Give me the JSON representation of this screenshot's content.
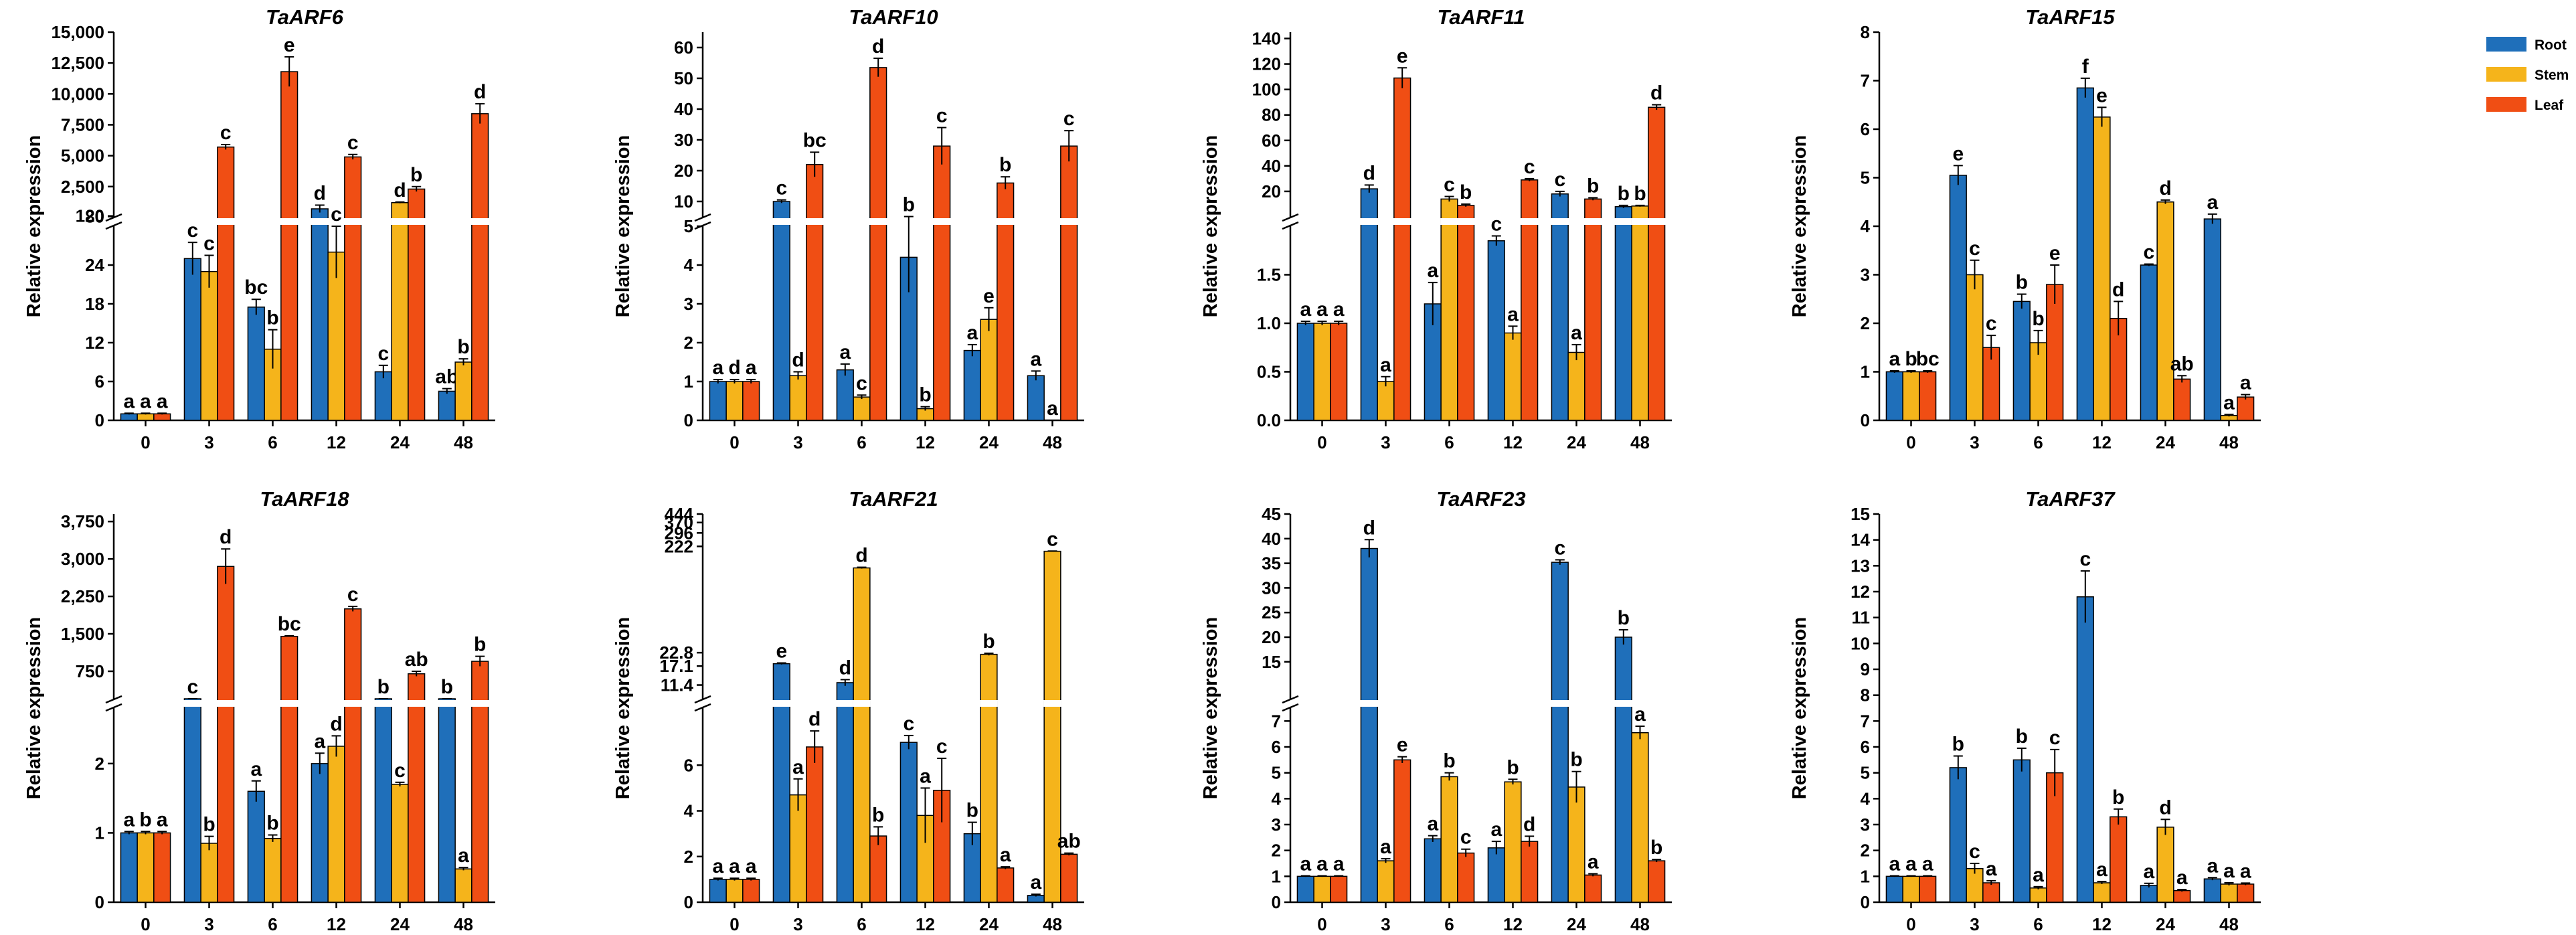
{
  "colors": {
    "Root": "#1f6fba",
    "Stem": "#f5b41b",
    "Leaf": "#f04e14"
  },
  "chart_data": {
    "type": "bar",
    "legend": [
      "Root",
      "Stem",
      "Leaf"
    ],
    "legend_position": "top-right",
    "x_categories": [
      "0",
      "3",
      "6",
      "12",
      "24",
      "48"
    ],
    "ylabel": "Relative expression",
    "panels": [
      {
        "title": "TaARF6",
        "lower": {
          "range": [
            0,
            30
          ],
          "ticks": [
            "0",
            "6",
            "12",
            "18",
            "24"
          ],
          "tickvals": [
            0,
            6,
            12,
            18,
            24
          ]
        },
        "upper": {
          "range": [
            50,
            15000
          ],
          "ticks": [
            "80",
            "120",
            "2,500",
            "5,000",
            "7,500",
            "10,000",
            "12,500",
            "15,000"
          ],
          "tickvals": [
            80,
            120,
            2500,
            5000,
            7500,
            10000,
            12500,
            15000
          ]
        },
        "series": [
          {
            "name": "Root",
            "values": [
              1,
              25,
              17.5,
              700,
              7.5,
              4.5
            ],
            "errors": [
              0.1,
              2.5,
              1.2,
              300,
              1,
              0.4
            ],
            "letters": [
              "a",
              "c",
              "bc",
              "d",
              "c",
              "ab"
            ]
          },
          {
            "name": "Stem",
            "values": [
              1,
              23,
              11,
              26,
              1200,
              9
            ],
            "errors": [
              0.1,
              2.5,
              3,
              4,
              50,
              0.5
            ],
            "letters": [
              "a",
              "c",
              "b",
              "c",
              "d",
              "b"
            ]
          },
          {
            "name": "Leaf",
            "values": [
              1,
              5700,
              11800,
              4900,
              2300,
              8400
            ],
            "errors": [
              0.1,
              200,
              1200,
              200,
              200,
              800
            ],
            "letters": [
              "a",
              "c",
              "e",
              "c",
              "b",
              "d"
            ]
          }
        ]
      },
      {
        "title": "TaARF10",
        "lower": {
          "range": [
            0,
            5
          ],
          "ticks": [
            "0",
            "1",
            "2",
            "3",
            "4",
            "5"
          ],
          "tickvals": [
            0,
            1,
            2,
            3,
            4,
            5
          ]
        },
        "upper": {
          "range": [
            5,
            65
          ],
          "ticks": [
            "10",
            "20",
            "30",
            "40",
            "50",
            "60"
          ],
          "tickvals": [
            10,
            20,
            30,
            40,
            50,
            60
          ]
        },
        "series": [
          {
            "name": "Root",
            "values": [
              1,
              10,
              1.3,
              4.2,
              1.8,
              1.15
            ],
            "errors": [
              0.05,
              0.5,
              0.15,
              0.9,
              0.15,
              0.12
            ],
            "letters": [
              "a",
              "c",
              "a",
              "b",
              "a",
              "a"
            ]
          },
          {
            "name": "Stem",
            "values": [
              1,
              1.15,
              0.6,
              0.3,
              2.6,
              0
            ],
            "errors": [
              0.05,
              0.1,
              0.05,
              0.05,
              0.3,
              0
            ],
            "letters": [
              "d",
              "d",
              "c",
              "b",
              "e",
              "a"
            ]
          },
          {
            "name": "Leaf",
            "values": [
              1,
              22,
              53.5,
              28,
              16,
              28
            ],
            "errors": [
              0.05,
              4,
              3,
              6,
              2,
              5
            ],
            "letters": [
              "a",
              "bc",
              "d",
              "c",
              "b",
              "c"
            ]
          }
        ]
      },
      {
        "title": "TaARF11",
        "lower": {
          "range": [
            0,
            2
          ],
          "ticks": [
            "0.0",
            "0.5",
            "1.0",
            "1.5"
          ],
          "tickvals": [
            0,
            0.5,
            1,
            1.5
          ]
        },
        "upper": {
          "range": [
            0,
            145
          ],
          "ticks": [
            "20",
            "40",
            "60",
            "80",
            "100",
            "120",
            "140"
          ],
          "tickvals": [
            20,
            40,
            60,
            80,
            100,
            120,
            140
          ]
        },
        "series": [
          {
            "name": "Root",
            "values": [
              1,
              22,
              1.2,
              1.85,
              18,
              8
            ],
            "errors": [
              0.02,
              3,
              0.22,
              0.05,
              2,
              1
            ],
            "letters": [
              "a",
              "d",
              "a",
              "c",
              "c",
              "b"
            ]
          },
          {
            "name": "Stem",
            "values": [
              1,
              0.4,
              14,
              0.9,
              0.7,
              8.5
            ],
            "errors": [
              0.02,
              0.05,
              2,
              0.07,
              0.08,
              0.5
            ],
            "letters": [
              "a",
              "a",
              "c",
              "a",
              "a",
              "b"
            ]
          },
          {
            "name": "Leaf",
            "values": [
              1,
              109,
              9,
              29,
              14,
              86
            ],
            "errors": [
              0.02,
              8,
              1,
              1,
              1,
              2
            ],
            "letters": [
              "a",
              "e",
              "b",
              "c",
              "b",
              "d"
            ]
          }
        ]
      },
      {
        "title": "TaARF15",
        "single": {
          "range": [
            0,
            8
          ],
          "ticks": [
            "0",
            "1",
            "2",
            "3",
            "4",
            "5",
            "6",
            "7",
            "8"
          ],
          "tickvals": [
            0,
            1,
            2,
            3,
            4,
            5,
            6,
            7,
            8
          ]
        },
        "series": [
          {
            "name": "Root",
            "values": [
              1,
              5.05,
              2.45,
              6.85,
              3.2,
              4.15
            ],
            "errors": [
              0.02,
              0.2,
              0.15,
              0.2,
              0.02,
              0.1
            ],
            "letters": [
              "a",
              "e",
              "b",
              "f",
              "c",
              "a"
            ]
          },
          {
            "name": "Stem",
            "values": [
              1,
              3,
              1.6,
              6.25,
              4.5,
              0.1
            ],
            "errors": [
              0.02,
              0.3,
              0.25,
              0.2,
              0.04,
              0.02
            ],
            "letters": [
              "b",
              "c",
              "b",
              "e",
              "d",
              "a"
            ]
          },
          {
            "name": "Leaf",
            "values": [
              1,
              1.5,
              2.8,
              2.1,
              0.85,
              0.48
            ],
            "errors": [
              0.02,
              0.25,
              0.4,
              0.35,
              0.07,
              0.05
            ],
            "letters": [
              "bc",
              "c",
              "e",
              "d",
              "ab",
              "a"
            ]
          }
        ]
      },
      {
        "title": "TaARF18",
        "lower": {
          "range": [
            0,
            2.8
          ],
          "ticks": [
            "0",
            "1",
            "2"
          ],
          "tickvals": [
            0,
            1,
            2
          ]
        },
        "upper": {
          "range": [
            200,
            3900
          ],
          "ticks": [
            "750",
            "1,500",
            "2,250",
            "3,000",
            "3,750"
          ],
          "tickvals": [
            750,
            1500,
            2250,
            3000,
            3750
          ]
        },
        "series": [
          {
            "name": "Root",
            "values": [
              1,
              30,
              1.6,
              2,
              5,
              4
            ],
            "errors": [
              0.02,
              1,
              0.15,
              0.15,
              0.2,
              0.2
            ],
            "letters": [
              "a",
              "c",
              "a",
              "a",
              "b",
              "b"
            ]
          },
          {
            "name": "Stem",
            "values": [
              1,
              0.85,
              0.92,
              2.25,
              1.7,
              0.48
            ],
            "errors": [
              0.02,
              0.1,
              0.05,
              0.15,
              0.03,
              0.02
            ],
            "letters": [
              "b",
              "b",
              "b",
              "d",
              "c",
              "a"
            ]
          },
          {
            "name": "Leaf",
            "values": [
              1,
              2850,
              1450,
              2000,
              700,
              950
            ],
            "errors": [
              0.02,
              350,
              10,
              50,
              50,
              100
            ],
            "letters": [
              "a",
              "d",
              "bc",
              "c",
              "ab",
              "b"
            ]
          }
        ]
      },
      {
        "title": "TaARF21",
        "lower": {
          "range": [
            0,
            8.5
          ],
          "ticks": [
            "0",
            "2",
            "4",
            "6"
          ],
          "tickvals": [
            0,
            2,
            4,
            6
          ]
        },
        "upper": {
          "range": [
            8.5,
            444
          ],
          "ticks": [
            "11.4",
            "17.1",
            "22.8",
            "222",
            "296",
            "370",
            "444"
          ],
          "tickvals": [
            11.4,
            17.1,
            22.8,
            222,
            296,
            370,
            444
          ]
        },
        "upper_log": true,
        "series": [
          {
            "name": "Root",
            "values": [
              1,
              18,
              12,
              7,
              3,
              0.3
            ],
            "errors": [
              0.05,
              0.3,
              0.8,
              0.3,
              0.5,
              0.05
            ],
            "letters": [
              "a",
              "e",
              "d",
              "c",
              "b",
              "a"
            ]
          },
          {
            "name": "Stem",
            "values": [
              1,
              4.7,
              140,
              3.8,
              22,
              200
            ],
            "errors": [
              0.05,
              0.7,
              2,
              1.2,
              0.5,
              1
            ],
            "letters": [
              "a",
              "a",
              "d",
              "a",
              "b",
              "c"
            ]
          },
          {
            "name": "Leaf",
            "values": [
              1,
              6.8,
              2.9,
              4.9,
              1.5,
              2.1
            ],
            "errors": [
              0.05,
              0.7,
              0.4,
              1.4,
              0.05,
              0.05
            ],
            "letters": [
              "a",
              "d",
              "b",
              "c",
              "a",
              "ab"
            ]
          }
        ]
      },
      {
        "title": "TaARF23",
        "lower": {
          "range": [
            0,
            7.5
          ],
          "ticks": [
            "0",
            "1",
            "2",
            "3",
            "4",
            "5",
            "6",
            "7"
          ],
          "tickvals": [
            0,
            1,
            2,
            3,
            4,
            5,
            6,
            7
          ]
        },
        "upper": {
          "range": [
            7.5,
            45
          ],
          "ticks": [
            "15",
            "20",
            "25",
            "30",
            "35",
            "40",
            "45"
          ],
          "tickvals": [
            15,
            20,
            25,
            30,
            35,
            40,
            45
          ]
        },
        "series": [
          {
            "name": "Root",
            "values": [
              1,
              38,
              2.45,
              2.1,
              35.2,
              20
            ],
            "errors": [
              0.02,
              1.8,
              0.12,
              0.25,
              0.5,
              1.5
            ],
            "letters": [
              "a",
              "d",
              "a",
              "a",
              "c",
              "b"
            ]
          },
          {
            "name": "Stem",
            "values": [
              1,
              1.6,
              4.85,
              4.65,
              4.45,
              6.55
            ],
            "errors": [
              0.02,
              0.08,
              0.15,
              0.1,
              0.6,
              0.25
            ],
            "letters": [
              "a",
              "a",
              "b",
              "b",
              "b",
              "a"
            ]
          },
          {
            "name": "Leaf",
            "values": [
              1,
              5.5,
              1.9,
              2.35,
              1.05,
              1.6
            ],
            "errors": [
              0.02,
              0.12,
              0.15,
              0.2,
              0.05,
              0.05
            ],
            "letters": [
              "a",
              "e",
              "c",
              "d",
              "a",
              "b"
            ]
          }
        ]
      },
      {
        "title": "TaARF37",
        "single": {
          "range": [
            0,
            15
          ],
          "ticks": [
            "0",
            "1",
            "2",
            "3",
            "4",
            "5",
            "6",
            "7",
            "8",
            "9",
            "10",
            "11",
            "12",
            "13",
            "14",
            "15"
          ],
          "tickvals": [
            0,
            1,
            2,
            3,
            4,
            5,
            6,
            7,
            8,
            9,
            10,
            11,
            12,
            13,
            14,
            15
          ]
        },
        "series": [
          {
            "name": "Root",
            "values": [
              1,
              5.2,
              5.5,
              11.8,
              0.65,
              0.9
            ],
            "errors": [
              0.02,
              0.45,
              0.45,
              1,
              0.08,
              0.05
            ],
            "letters": [
              "a",
              "b",
              "b",
              "c",
              "a",
              "a"
            ]
          },
          {
            "name": "Stem",
            "values": [
              1,
              1.3,
              0.55,
              0.75,
              2.9,
              0.7
            ],
            "errors": [
              0.02,
              0.2,
              0.05,
              0.05,
              0.3,
              0.05
            ],
            "letters": [
              "a",
              "c",
              "a",
              "a",
              "d",
              "a"
            ]
          },
          {
            "name": "Leaf",
            "values": [
              1,
              0.75,
              5,
              3.3,
              0.45,
              0.7
            ],
            "errors": [
              0.02,
              0.08,
              0.9,
              0.3,
              0.04,
              0.04
            ],
            "letters": [
              "a",
              "a",
              "c",
              "b",
              "a",
              "a"
            ]
          }
        ]
      }
    ]
  }
}
